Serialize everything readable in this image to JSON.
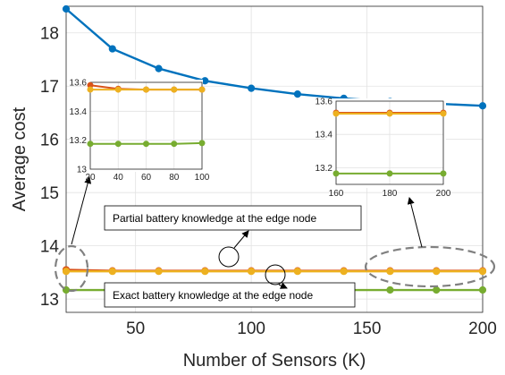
{
  "chart_data": {
    "type": "line",
    "xlabel": "Number of Sensors (K)",
    "ylabel": "Average cost",
    "xlim": [
      20,
      200
    ],
    "ylim": [
      12.75,
      18.5
    ],
    "xticks": [
      50,
      100,
      150,
      200
    ],
    "yticks": [
      13,
      14,
      15,
      16,
      17,
      18
    ],
    "grid": true,
    "x": [
      20,
      40,
      60,
      80,
      100,
      120,
      140,
      160,
      180,
      200
    ],
    "series": [
      {
        "color": "#0072BD",
        "values": [
          18.45,
          17.7,
          17.33,
          17.1,
          16.96,
          16.85,
          16.77,
          16.71,
          16.67,
          16.63
        ]
      },
      {
        "color": "#D95319",
        "values": [
          13.55,
          13.53,
          13.53,
          13.53,
          13.53,
          13.53,
          13.53,
          13.53,
          13.53,
          13.53
        ]
      },
      {
        "color": "#EDB120",
        "values": [
          13.52,
          13.52,
          13.52,
          13.52,
          13.52,
          13.52,
          13.52,
          13.52,
          13.52,
          13.52
        ]
      },
      {
        "color": "#77AC30",
        "values": [
          13.17,
          13.17,
          13.17,
          13.17,
          13.17,
          13.17,
          13.17,
          13.17,
          13.17,
          13.17
        ]
      }
    ],
    "annotations": [
      {
        "text": "Partial battery knowledge at the edge node"
      },
      {
        "text": "Exact battery knowledge at the edge node"
      }
    ],
    "insets": [
      {
        "xlim": [
          20,
          100
        ],
        "ylim": [
          13,
          13.6
        ],
        "xticks": [
          20,
          40,
          60,
          80,
          100
        ],
        "yticks": [
          13,
          13.2,
          13.4,
          13.6
        ],
        "x": [
          20,
          40,
          60,
          80,
          100
        ],
        "series": [
          {
            "color": "#D95319",
            "values": [
              13.58,
              13.555,
              13.55,
              13.55,
              13.55
            ]
          },
          {
            "color": "#EDB120",
            "values": [
              13.55,
              13.55,
              13.55,
              13.55,
              13.55
            ]
          },
          {
            "color": "#77AC30",
            "values": [
              13.175,
              13.175,
              13.175,
              13.175,
              13.18
            ]
          }
        ]
      },
      {
        "xlim": [
          160,
          200
        ],
        "ylim": [
          13.1,
          13.6
        ],
        "xticks": [
          160,
          180,
          200
        ],
        "yticks": [
          13.2,
          13.4,
          13.6
        ],
        "x": [
          160,
          180,
          200
        ],
        "series": [
          {
            "color": "#D95319",
            "values": [
              13.53,
              13.53,
              13.53
            ]
          },
          {
            "color": "#EDB120",
            "values": [
              13.525,
              13.525,
              13.525
            ]
          },
          {
            "color": "#77AC30",
            "values": [
              13.165,
              13.165,
              13.165
            ]
          }
        ]
      }
    ]
  }
}
